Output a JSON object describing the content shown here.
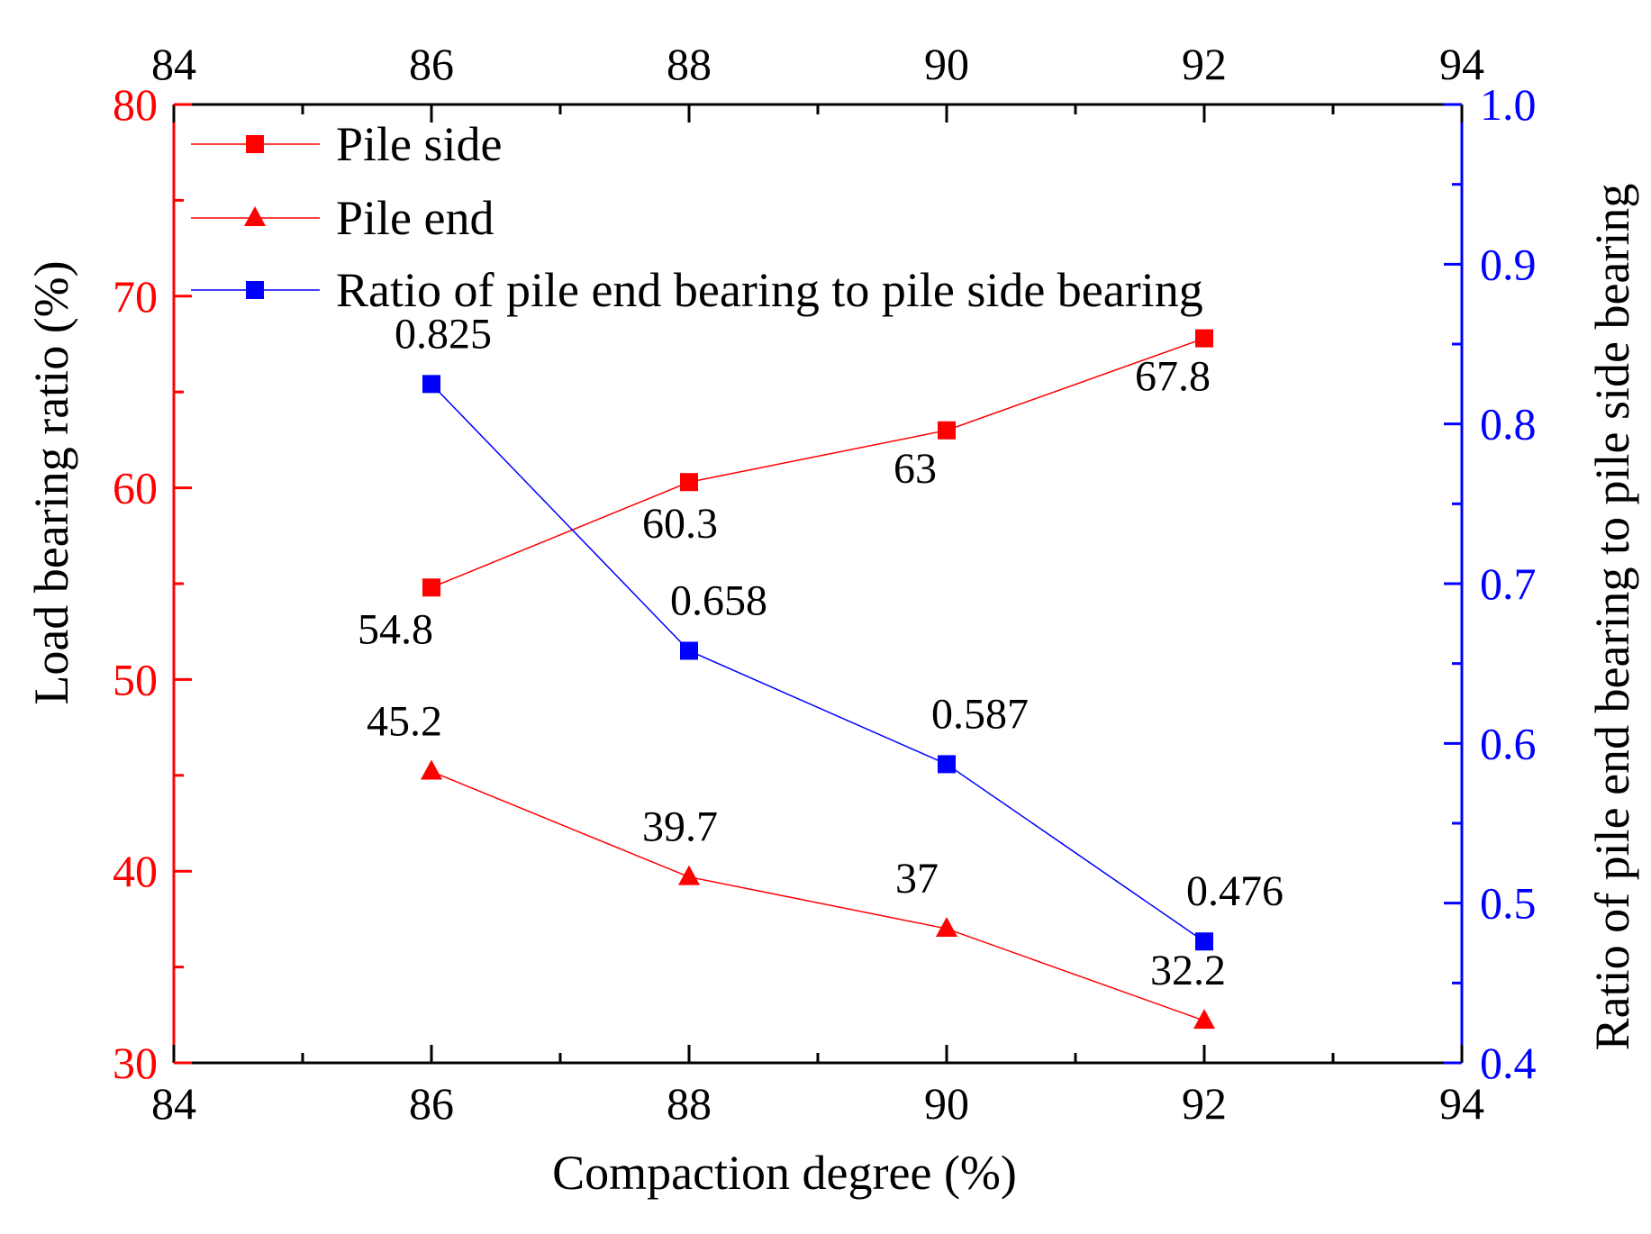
{
  "chart_data": {
    "type": "line",
    "title": "",
    "xlabel": "Compaction degree (%)",
    "ylabel": "Load bearing ratio (%)",
    "y2label": "Ratio of pile end bearing to pile side bearing",
    "xlim": [
      84,
      94
    ],
    "ylim": [
      30,
      80
    ],
    "y2lim": [
      0.4,
      1.0
    ],
    "x_ticks": [
      "84",
      "86",
      "88",
      "90",
      "92",
      "94"
    ],
    "y_ticks": [
      "30",
      "40",
      "50",
      "60",
      "70",
      "80"
    ],
    "y2_ticks": [
      "0.4",
      "0.5",
      "0.6",
      "0.7",
      "0.8",
      "0.9",
      "1.0"
    ],
    "x": [
      86,
      88,
      90,
      92
    ],
    "legend_position": "top-left",
    "series": [
      {
        "name": "Pile side",
        "axis": "left",
        "marker": "square",
        "color": "#ff0000",
        "values": [
          54.8,
          60.3,
          63,
          67.8
        ],
        "labels": [
          "54.8",
          "60.3",
          "63",
          "67.8"
        ]
      },
      {
        "name": "Pile end",
        "axis": "left",
        "marker": "triangle",
        "color": "#ff0000",
        "values": [
          45.2,
          39.7,
          37,
          32.2
        ],
        "labels": [
          "45.2",
          "39.7",
          "37",
          "32.2"
        ]
      },
      {
        "name": "Ratio of pile end bearing to pile side bearing",
        "axis": "right",
        "marker": "square",
        "color": "#0000ff",
        "values": [
          0.825,
          0.658,
          0.587,
          0.476
        ],
        "labels": [
          "0.825",
          "0.658",
          "0.587",
          "0.476"
        ]
      }
    ],
    "colors": {
      "left_axis": "#ff0000",
      "right_axis": "#0000ff",
      "frame": "#000000"
    }
  }
}
